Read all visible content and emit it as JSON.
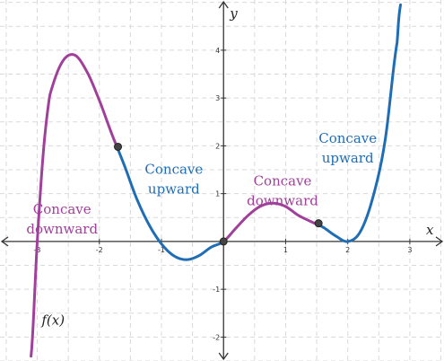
{
  "chart_data": {
    "type": "line",
    "xlabel": "x",
    "ylabel": "y",
    "xlim": [
      -3.6,
      3.55
    ],
    "ylim": [
      -2.5,
      5.05
    ],
    "x_ticks": [
      -3,
      -2,
      -1,
      1,
      2,
      3
    ],
    "y_ticks": [
      -2,
      -1,
      1,
      2,
      3,
      4
    ],
    "grid": true,
    "colors": {
      "downward": "#a0409a",
      "upward": "#1f6db5",
      "point": "#444444"
    },
    "function": {
      "label": "f(x)",
      "x": [
        -3.1,
        -3.0,
        -2.9,
        -2.8,
        -2.6,
        -2.4,
        -2.2,
        -2.0,
        -1.8,
        -1.6,
        -1.4,
        -1.2,
        -1.0,
        -0.8,
        -0.6,
        -0.4,
        -0.2,
        0.0,
        0.2,
        0.4,
        0.6,
        0.8,
        1.0,
        1.2,
        1.4,
        1.6,
        1.8,
        2.0,
        2.2,
        2.4,
        2.6,
        2.8,
        2.85
      ],
      "y": [
        -2.4,
        0.0,
        1.9,
        3.05,
        3.75,
        3.9,
        3.55,
        2.95,
        2.25,
        1.6,
        0.9,
        0.35,
        -0.05,
        -0.3,
        -0.38,
        -0.3,
        -0.12,
        0.0,
        0.28,
        0.55,
        0.74,
        0.8,
        0.73,
        0.55,
        0.42,
        0.3,
        0.12,
        0.0,
        0.2,
        0.9,
        2.1,
        4.2,
        4.95
      ]
    },
    "inflection_points": [
      {
        "x": -1.7,
        "y": 1.98
      },
      {
        "x": 0.0,
        "y": 0.0
      },
      {
        "x": 1.53,
        "y": 0.38
      }
    ],
    "segments": [
      {
        "from": -3.1,
        "to": -1.7,
        "concavity": "downward"
      },
      {
        "from": -1.7,
        "to": 0.0,
        "concavity": "upward"
      },
      {
        "from": 0.0,
        "to": 1.53,
        "concavity": "downward"
      },
      {
        "from": 1.53,
        "to": 2.85,
        "concavity": "upward"
      }
    ],
    "annotations": [
      {
        "lines": [
          "Concave",
          "downward"
        ],
        "concavity": "downward",
        "x": -2.6,
        "y": 0.58
      },
      {
        "lines": [
          "Concave",
          "upward"
        ],
        "concavity": "upward",
        "x": -0.8,
        "y": 1.42
      },
      {
        "lines": [
          "Concave",
          "downward"
        ],
        "concavity": "downward",
        "x": 0.95,
        "y": 1.17
      },
      {
        "lines": [
          "Concave",
          "upward"
        ],
        "concavity": "upward",
        "x": 2.0,
        "y": 2.06
      }
    ]
  }
}
